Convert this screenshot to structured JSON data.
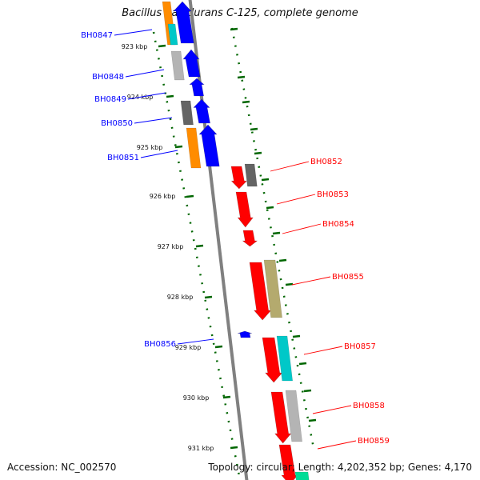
{
  "title": "Bacillus halodurans C-125, complete genome",
  "footer": {
    "accession": "Accession: NC_002570",
    "summary": "Topology: circular; Length: 4,202,352 bp; Genes: 4,170"
  },
  "colors": {
    "forward_gene": "#0000ff",
    "reverse_gene": "#ff0000",
    "tick": "#006600",
    "backbone": "#808080",
    "orange_feature": "#ff8c00",
    "cyan_feature": "#00c8c8",
    "grey_feature": "#b4b4b4",
    "dark_grey_feature": "#646464",
    "olive_feature": "#b4aa6e",
    "green_feature": "#00dc96"
  },
  "kbp_ticks": [
    "923 kbp",
    "924 kbp",
    "925 kbp",
    "926 kbp",
    "927 kbp",
    "928 kbp",
    "929 kbp",
    "930 kbp",
    "931 kbp"
  ],
  "forward_genes": [
    "BH0847",
    "BH0848",
    "BH0849",
    "BH0850",
    "BH0851",
    "BH0856"
  ],
  "reverse_genes": [
    "BH0852",
    "BH0853",
    "BH0854",
    "BH0855",
    "BH0857",
    "BH0858",
    "BH0859"
  ]
}
